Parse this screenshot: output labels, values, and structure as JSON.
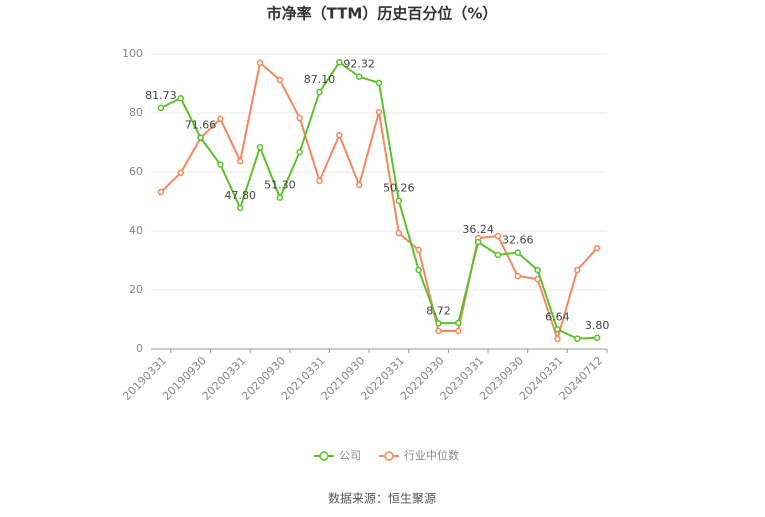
{
  "chart_data": {
    "type": "line",
    "title": "市净率（TTM）历史百分位（%）",
    "source": "数据来源：恒生聚源",
    "categories": [
      "20190331",
      null,
      "20190930",
      null,
      "20200331",
      null,
      "20200930",
      null,
      "20210331",
      null,
      "20210930",
      null,
      "20220331",
      null,
      "20220930",
      null,
      "20230331",
      null,
      "20230930",
      null,
      "20240331",
      null,
      "20240712"
    ],
    "series": [
      {
        "name": "公司",
        "color": "#5cc12c",
        "values": [
          81.73,
          85,
          71.66,
          62.5,
          47.8,
          68.4,
          51.3,
          66.8,
          87.1,
          97.2,
          92.32,
          90.2,
          50.26,
          26.8,
          8.72,
          8.8,
          36.24,
          31.9,
          32.66,
          26.8,
          6.64,
          3.5,
          3.8
        ],
        "value_labels": [
          "81.73",
          null,
          "71.66",
          null,
          "47.80",
          null,
          "51.30",
          null,
          "87.10",
          null,
          "92.32",
          null,
          "50.26",
          null,
          "8.72",
          null,
          "36.24",
          null,
          "32.66",
          null,
          "6.64",
          null,
          "3.80"
        ]
      },
      {
        "name": "行业中位数",
        "color": "#f4895f",
        "values": [
          53.2,
          59.7,
          71.5,
          78,
          63.7,
          97,
          91.2,
          78.3,
          57,
          72.5,
          55.6,
          80.3,
          39.3,
          33.6,
          6.1,
          6.1,
          37.6,
          38.3,
          24.7,
          23.7,
          3.4,
          26.8,
          34.2
        ]
      }
    ],
    "ylim": [
      0,
      100
    ],
    "yticks": [
      0,
      20,
      40,
      60,
      80,
      100
    ],
    "grid": true,
    "legend": "bottom"
  }
}
